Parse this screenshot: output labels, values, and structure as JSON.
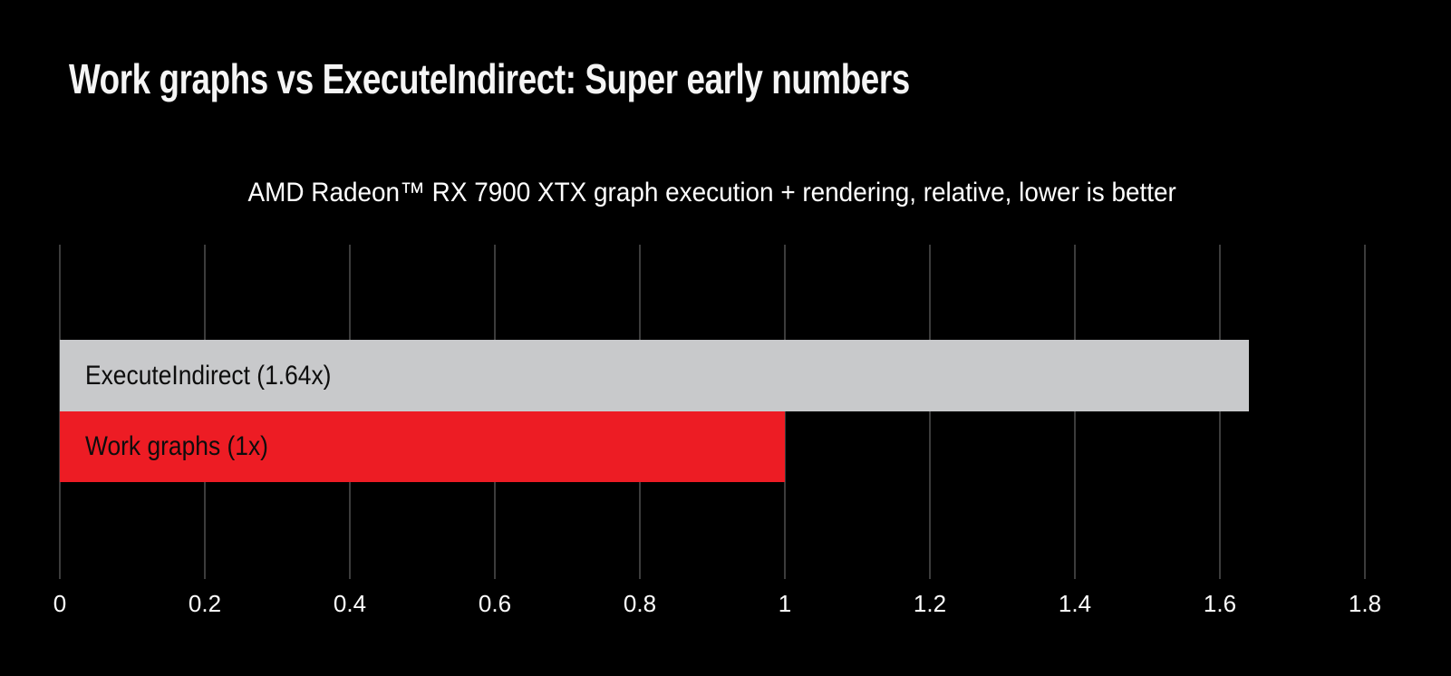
{
  "header": {
    "title": "Work graphs vs ExecuteIndirect: Super early numbers"
  },
  "chart_data": {
    "type": "bar",
    "orientation": "horizontal",
    "title": "AMD Radeon™ RX 7900 XTX graph execution + rendering, relative, lower is better",
    "note": "lower is better",
    "categories": [
      "ExecuteIndirect",
      "Work graphs"
    ],
    "values": [
      1.64,
      1.0
    ],
    "bar_labels": [
      "ExecuteIndirect (1.64x)",
      "Work graphs (1x)"
    ],
    "bar_colors": [
      "#c8c9cb",
      "#ed1c24"
    ],
    "xlim": [
      0,
      1.8
    ],
    "x_ticks": [
      0,
      0.2,
      0.4,
      0.6,
      0.8,
      1,
      1.2,
      1.4,
      1.6,
      1.8
    ],
    "x_tick_labels": [
      "0",
      "0.2",
      "0.4",
      "0.6",
      "0.8",
      "1",
      "1.2",
      "1.4",
      "1.6",
      "1.8"
    ],
    "grid": "vertical",
    "legend": "none",
    "labels_inside_bars": true
  },
  "colors": {
    "background": "#000000",
    "title_text": "#f5f5f5",
    "subtitle_text": "#ffffff",
    "tick_text": "#ffffff",
    "bar_label_text": "#0d0d0d",
    "gridline": "#3c3c3c",
    "bar_gray": "#c8c9cb",
    "bar_red": "#ed1c24"
  }
}
